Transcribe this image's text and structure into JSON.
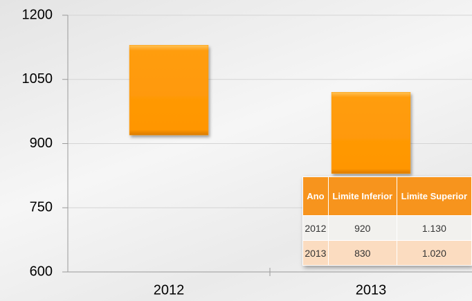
{
  "chart_data": {
    "type": "floating_bar",
    "categories": [
      "2012",
      "2013"
    ],
    "low": [
      920,
      830
    ],
    "high": [
      1130,
      1020
    ],
    "color": "#ff9900",
    "ylim": [
      600,
      1200
    ],
    "yticks": [
      600,
      750,
      900,
      1050,
      1200
    ],
    "grid": true
  },
  "table": {
    "header": [
      "Ano",
      "Limite Inferior",
      "Limite Superior"
    ],
    "rows": [
      [
        "2012",
        "920",
        "1.130"
      ],
      [
        "2013",
        "830",
        "1.020"
      ]
    ]
  }
}
